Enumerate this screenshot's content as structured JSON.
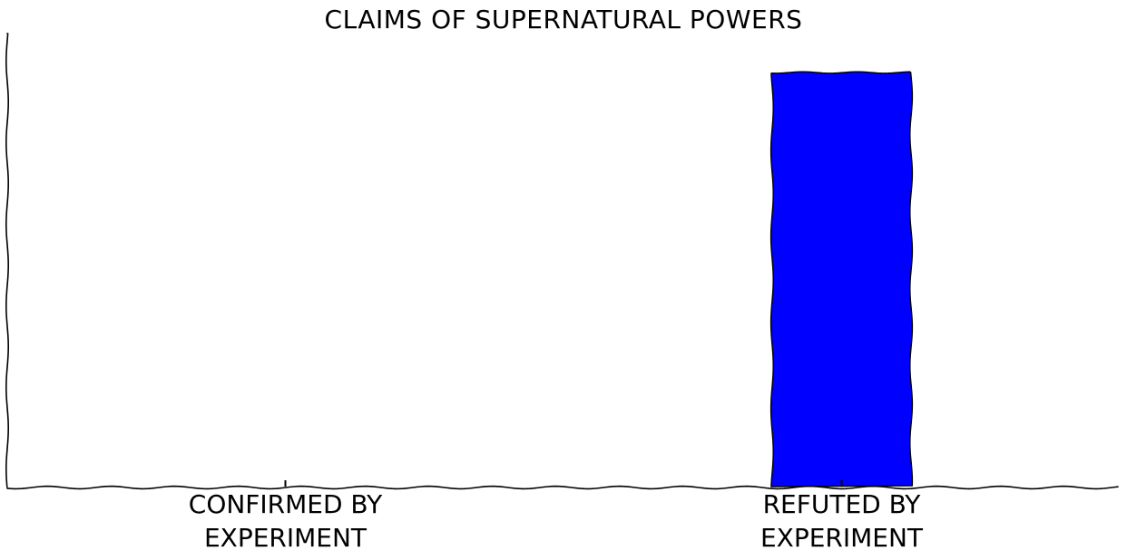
{
  "chart_data": {
    "type": "bar",
    "title": "CLAIMS OF SUPERNATURAL POWERS",
    "categories": [
      [
        "CONFIRMED BY",
        "EXPERIMENT"
      ],
      [
        "REFUTED BY",
        "EXPERIMENT"
      ]
    ],
    "values": [
      0,
      100
    ],
    "ylim": [
      0,
      100
    ],
    "xlabel": "",
    "ylabel": "",
    "grid": false,
    "bar_color": "#0000ff",
    "style": "xkcd-hand-drawn"
  }
}
